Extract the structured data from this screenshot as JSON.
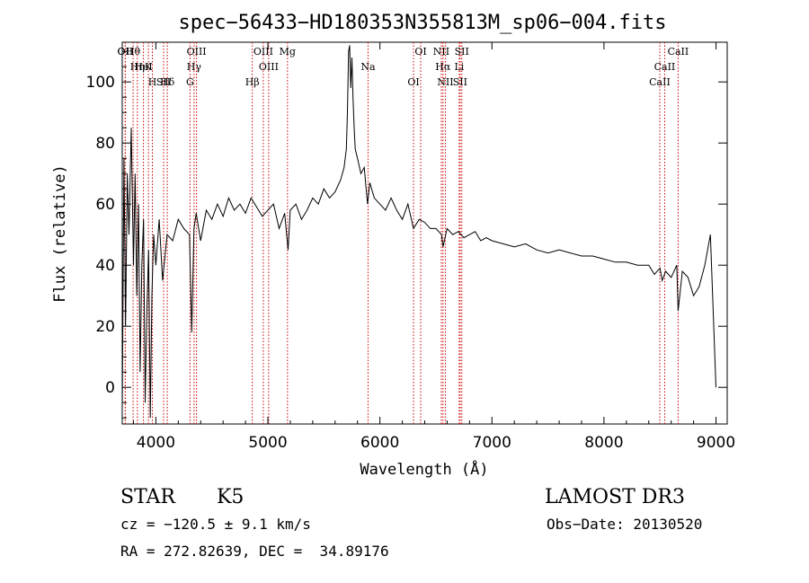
{
  "chart_data": {
    "type": "line",
    "title": "spec−56433−HD180353N355813M_sp06−004.fits",
    "xlabel": "Wavelength (Å)",
    "ylabel": "Flux (relative)",
    "xlim": [
      3700,
      9100
    ],
    "ylim": [
      -12,
      113
    ],
    "xticks": [
      4000,
      5000,
      6000,
      7000,
      8000,
      9000
    ],
    "xtick_labels": [
      "4000",
      "5000",
      "6000",
      "7000",
      "8000",
      "9000"
    ],
    "yticks": [
      0,
      20,
      40,
      60,
      80,
      100
    ],
    "ytick_labels": [
      "0",
      "20",
      "40",
      "60",
      "80",
      "100"
    ],
    "series": [
      {
        "name": "flux",
        "x": [
          3700,
          3715,
          3730,
          3745,
          3760,
          3780,
          3800,
          3815,
          3830,
          3845,
          3860,
          3875,
          3890,
          3905,
          3920,
          3935,
          3950,
          3965,
          3980,
          4000,
          4030,
          4060,
          4100,
          4150,
          4200,
          4250,
          4300,
          4320,
          4340,
          4360,
          4400,
          4450,
          4500,
          4550,
          4600,
          4650,
          4700,
          4750,
          4800,
          4850,
          4900,
          4950,
          5000,
          5050,
          5100,
          5150,
          5180,
          5200,
          5250,
          5300,
          5350,
          5400,
          5450,
          5500,
          5550,
          5600,
          5650,
          5680,
          5700,
          5710,
          5720,
          5730,
          5740,
          5750,
          5760,
          5770,
          5780,
          5800,
          5830,
          5860,
          5890,
          5910,
          5950,
          6000,
          6050,
          6100,
          6150,
          6200,
          6250,
          6300,
          6350,
          6400,
          6450,
          6500,
          6550,
          6563,
          6600,
          6650,
          6700,
          6750,
          6800,
          6850,
          6900,
          6950,
          7000,
          7100,
          7200,
          7300,
          7400,
          7500,
          7600,
          7700,
          7800,
          7900,
          8000,
          8100,
          8200,
          8300,
          8400,
          8450,
          8500,
          8520,
          8550,
          8600,
          8650,
          8662,
          8700,
          8750,
          8800,
          8850,
          8900,
          8950,
          9000
        ],
        "values": [
          -8,
          75,
          20,
          70,
          50,
          85,
          40,
          70,
          30,
          60,
          5,
          40,
          55,
          -5,
          25,
          45,
          -10,
          30,
          50,
          40,
          55,
          35,
          50,
          48,
          55,
          52,
          50,
          18,
          52,
          57,
          48,
          58,
          55,
          60,
          56,
          62,
          58,
          60,
          57,
          62,
          59,
          56,
          58,
          60,
          52,
          57,
          45,
          58,
          60,
          55,
          58,
          62,
          60,
          65,
          62,
          64,
          68,
          72,
          78,
          90,
          110,
          112,
          98,
          108,
          95,
          85,
          78,
          75,
          70,
          72,
          60,
          67,
          62,
          60,
          58,
          62,
          58,
          55,
          60,
          52,
          55,
          54,
          52,
          52,
          50,
          46,
          52,
          50,
          51,
          49,
          50,
          51,
          48,
          49,
          48,
          47,
          46,
          47,
          45,
          44,
          45,
          44,
          43,
          43,
          42,
          41,
          41,
          40,
          40,
          37,
          39,
          35,
          38,
          36,
          40,
          25,
          38,
          36,
          30,
          33,
          40,
          50,
          0
        ]
      }
    ],
    "lines": [
      {
        "label": "Hθ",
        "wl": 3797
      },
      {
        "label": "K",
        "wl": 3934
      },
      {
        "label": "Hδ",
        "wl": 4102
      },
      {
        "label": "OII",
        "wl": 3727
      },
      {
        "label": "HeI",
        "wl": 3889
      },
      {
        "label": "SII",
        "wl": 4069
      },
      {
        "label": "OII",
        "wl": 3727
      },
      {
        "label": "Hη",
        "wl": 3835
      },
      {
        "label": "H",
        "wl": 3969
      },
      {
        "label": "OIII",
        "wl": 4363
      },
      {
        "label": "Hγ",
        "wl": 4341
      },
      {
        "label": "G",
        "wl": 4305
      },
      {
        "label": "OIII",
        "wl": 4959
      },
      {
        "label": "OIII",
        "wl": 5007
      },
      {
        "label": "Hβ",
        "wl": 4861
      },
      {
        "label": "Mg",
        "wl": 5175
      },
      {
        "label": "Na",
        "wl": 5894
      },
      {
        "label": "OI",
        "wl": 6300
      },
      {
        "label": "OI",
        "wl": 6364
      },
      {
        "label": "Hα",
        "wl": 6563
      },
      {
        "label": "SII",
        "wl": 6716
      },
      {
        "label": "NII",
        "wl": 6548
      },
      {
        "label": "Li",
        "wl": 6708
      },
      {
        "label": "NII",
        "wl": 6584
      },
      {
        "label": "SII",
        "wl": 6731
      },
      {
        "label": "CaII",
        "wl": 8542
      },
      {
        "label": "CaII",
        "wl": 8498
      },
      {
        "label": "CaII",
        "wl": 8662
      }
    ]
  },
  "info": {
    "object_class": "STAR",
    "subclass": "K5",
    "survey": "LAMOST DR3",
    "cz": "cz = −120.5 ± 9.1 km/s",
    "obs_date": "Obs−Date: 20130520",
    "coords": "RA = 272.82639, DEC =  34.89176"
  }
}
